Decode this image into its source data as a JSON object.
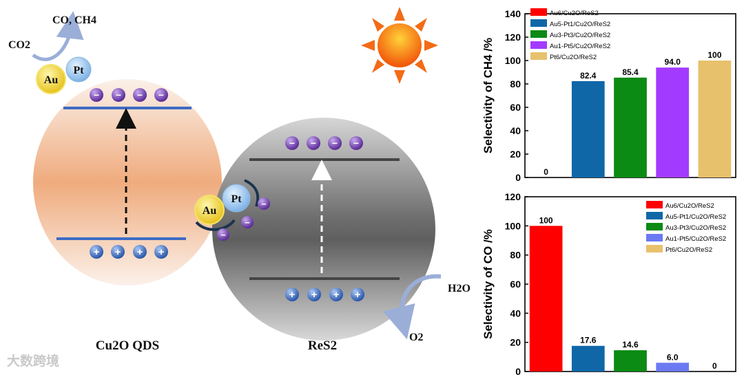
{
  "scheme": {
    "co2_label": "CO2",
    "products_label": "CO, CH4",
    "au_label": "Au",
    "pt_label": "Pt",
    "h2o_label": "H2O",
    "o2_label": "O2",
    "cu2o_caption": "Cu2O QDS",
    "res2_caption": "ReS2",
    "electron_symbol": "−",
    "hole_symbol": "+"
  },
  "watermark": "大数跨境",
  "colors": {
    "au6": "#ff0000",
    "au5pt1": "#0f67a8",
    "au3pt3": "#0b8a14",
    "au1pt5_top": "#a33bff",
    "au1pt5_bottom": "#6b79f3",
    "pt6": "#e8c16c",
    "band_blue": "#3d6bc5",
    "band_dark": "#454545",
    "electron": "#6b3aa6",
    "hole": "#2f5fb3"
  },
  "chart_data": [
    {
      "type": "bar",
      "ylabel": "Selectivity of CH4 /%",
      "ylim": [
        0,
        140
      ],
      "yticks": [
        "0",
        "20",
        "40",
        "60",
        "80",
        "100",
        "120",
        "140"
      ],
      "categories": [
        "Au6/Cu2O/ReS2",
        "Au5-Pt1/Cu2O/ReS2",
        "Au3-Pt3/Cu2O/ReS2",
        "Au1-Pt5/Cu2O/ReS2",
        "Pt6/Cu2O/ReS2"
      ],
      "values": [
        0,
        82.4,
        85.4,
        94.0,
        100
      ],
      "value_labels": [
        "0",
        "82.4",
        "85.4",
        "94.0",
        "100"
      ],
      "bar_colors": [
        "#ff0000",
        "#0f67a8",
        "#0b8a14",
        "#a33bff",
        "#e8c16c"
      ],
      "legend": [
        "Au6/Cu2O/ReS2",
        "Au5-Pt1/Cu2O/ReS2",
        "Au3-Pt3/Cu2O/ReS2",
        "Au1-Pt5/Cu2O/ReS2",
        "Pt6/Cu2O/ReS2"
      ],
      "legend_position": "top-left",
      "grid": false
    },
    {
      "type": "bar",
      "ylabel": "Selectivity of CO /%",
      "ylim": [
        0,
        120
      ],
      "yticks": [
        "0",
        "20",
        "40",
        "60",
        "80",
        "100",
        "120"
      ],
      "categories": [
        "Au6/Cu2O/ReS2",
        "Au5-Pt1/Cu2O/ReS2",
        "Au3-Pt3/Cu2O/ReS2",
        "Au1-Pt5/Cu2O/ReS2",
        "Pt6/Cu2O/ReS2"
      ],
      "values": [
        100,
        17.6,
        14.6,
        6.0,
        0
      ],
      "value_labels": [
        "100",
        "17.6",
        "14.6",
        "6.0",
        "0"
      ],
      "bar_colors": [
        "#ff0000",
        "#0f67a8",
        "#0b8a14",
        "#6b79f3",
        "#e8c16c"
      ],
      "legend": [
        "Au6/Cu2O/ReS2",
        "Au5-Pt1/Cu2O/ReS2",
        "Au3-Pt3/Cu2O/ReS2",
        "Au1-Pt5/Cu2O/ReS2",
        "Pt6/Cu2O/ReS2"
      ],
      "legend_position": "top-right",
      "grid": false
    }
  ]
}
